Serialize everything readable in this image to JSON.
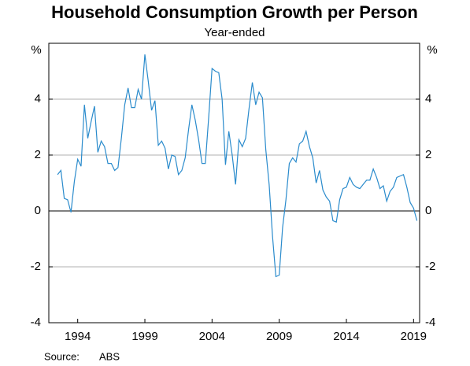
{
  "chart_data": {
    "type": "line",
    "title": "Household Consumption Growth per Person",
    "subtitle": "Year-ended",
    "y_unit": "%",
    "x": [
      1992.5,
      1992.75,
      1993,
      1993.25,
      1993.5,
      1993.75,
      1994,
      1994.25,
      1994.5,
      1994.75,
      1995,
      1995.25,
      1995.5,
      1995.75,
      1996,
      1996.25,
      1996.5,
      1996.75,
      1997,
      1997.25,
      1997.5,
      1997.75,
      1998,
      1998.25,
      1998.5,
      1998.75,
      1999,
      1999.25,
      1999.5,
      1999.75,
      2000,
      2000.25,
      2000.5,
      2000.75,
      2001,
      2001.25,
      2001.5,
      2001.75,
      2002,
      2002.25,
      2002.5,
      2002.75,
      2003,
      2003.25,
      2003.5,
      2003.75,
      2004,
      2004.25,
      2004.5,
      2004.75,
      2005,
      2005.25,
      2005.5,
      2005.75,
      2006,
      2006.25,
      2006.5,
      2006.75,
      2007,
      2007.25,
      2007.5,
      2007.75,
      2008,
      2008.25,
      2008.5,
      2008.75,
      2009,
      2009.25,
      2009.5,
      2009.75,
      2010,
      2010.25,
      2010.5,
      2010.75,
      2011,
      2011.25,
      2011.5,
      2011.75,
      2012,
      2012.25,
      2012.5,
      2012.75,
      2013,
      2013.25,
      2013.5,
      2013.75,
      2014,
      2014.25,
      2014.5,
      2014.75,
      2015,
      2015.25,
      2015.5,
      2015.75,
      2016,
      2016.25,
      2016.5,
      2016.75,
      2017,
      2017.25,
      2017.5,
      2017.75,
      2018,
      2018.25,
      2018.5,
      2018.75,
      2019,
      2019.25
    ],
    "series": [
      {
        "name": "Household consumption growth per person",
        "color": "#2a8bcc",
        "values": [
          1.3,
          1.45,
          0.45,
          0.4,
          -0.05,
          1.05,
          1.85,
          1.6,
          3.8,
          2.6,
          3.2,
          3.75,
          2.1,
          2.5,
          2.3,
          1.7,
          1.7,
          1.45,
          1.55,
          2.6,
          3.8,
          4.4,
          3.7,
          3.7,
          4.35,
          4.0,
          5.6,
          4.65,
          3.6,
          3.95,
          2.35,
          2.5,
          2.25,
          1.5,
          2.0,
          1.95,
          1.3,
          1.45,
          1.9,
          2.9,
          3.8,
          3.25,
          2.55,
          1.7,
          1.7,
          3.35,
          5.1,
          5.0,
          4.95,
          4.0,
          1.65,
          2.85,
          2.0,
          0.95,
          2.55,
          2.3,
          2.6,
          3.65,
          4.6,
          3.8,
          4.25,
          4.05,
          2.2,
          0.95,
          -0.9,
          -2.35,
          -2.3,
          -0.6,
          0.4,
          1.7,
          1.9,
          1.75,
          2.4,
          2.5,
          2.85,
          2.3,
          1.9,
          1.0,
          1.45,
          0.75,
          0.5,
          0.35,
          -0.35,
          -0.4,
          0.4,
          0.8,
          0.85,
          1.2,
          0.95,
          0.85,
          0.8,
          0.95,
          1.1,
          1.1,
          1.5,
          1.2,
          0.8,
          0.9,
          0.35,
          0.7,
          0.85,
          1.2,
          1.25,
          1.3,
          0.85,
          0.3,
          0.1,
          -0.35
        ]
      }
    ],
    "xlim": [
      1991.85,
      2019.45
    ],
    "xticks": [
      1994,
      1999,
      2004,
      2009,
      2014,
      2019
    ],
    "ylim": [
      -4,
      6
    ],
    "yticks": [
      -4,
      -2,
      0,
      2,
      4
    ],
    "grid": true,
    "source_label": "Source:",
    "source": "ABS"
  }
}
